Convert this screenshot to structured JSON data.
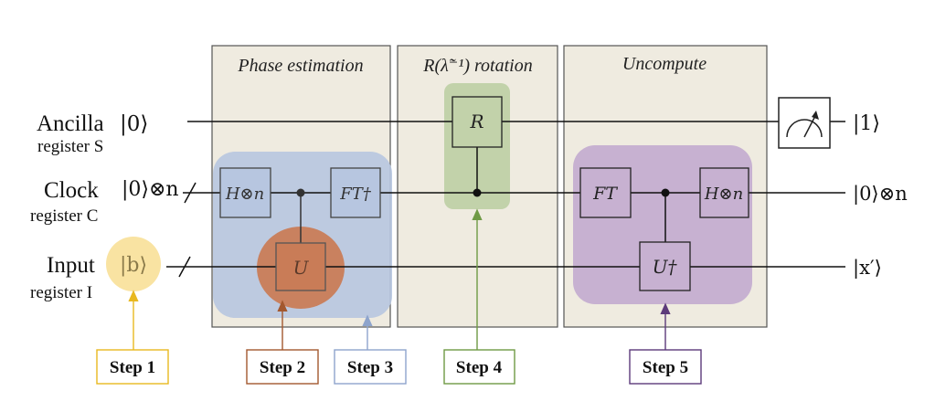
{
  "sections": {
    "phase_estimation": "Phase estimation",
    "rotation": "R(λ̃⁻¹) rotation",
    "uncompute": "Uncompute"
  },
  "registers": {
    "ancilla_name": "Ancilla",
    "ancilla_state": "|0⟩",
    "ancilla_register": "register S",
    "clock_name": "Clock",
    "clock_state": "|0⟩⊗n",
    "clock_register": "register C",
    "input_name": "Input",
    "input_state": "|b⟩",
    "input_register": "register I"
  },
  "outputs": {
    "ancilla": "|1⟩",
    "clock": "|0⟩⊗n",
    "input": "|x′⟩"
  },
  "gates": {
    "hadamard_1": "H⊗n",
    "ft_dagger": "FT†",
    "unitary": "U",
    "rotation": "R",
    "ft": "FT",
    "hadamard_2": "H⊗n",
    "unitary_dagger": "U†"
  },
  "steps": [
    "Step 1",
    "Step 2",
    "Step 3",
    "Step 4",
    "Step 5"
  ],
  "colors": {
    "section_fill": "#efebe0",
    "step1": "#e8b820",
    "step1_fill": "#f9e3a2",
    "step2": "#a3582f",
    "step2_fill": "#c97c57",
    "step3": "#8ea4cc",
    "step3_fill": "#b7c6e0",
    "step4": "#6f9a45",
    "step4_fill": "#c2d2aa",
    "step5": "#5c3a7a",
    "step5_fill": "#c7b1d1"
  }
}
